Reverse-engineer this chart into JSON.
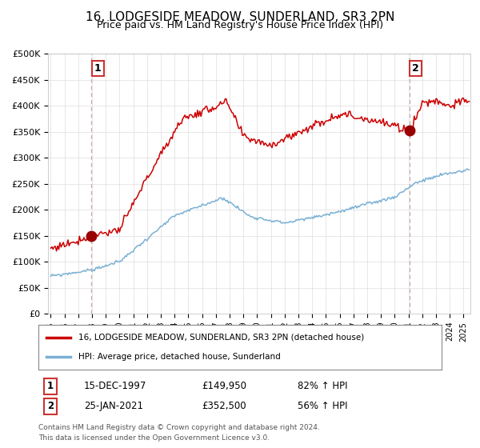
{
  "title": "16, LODGESIDE MEADOW, SUNDERLAND, SR3 2PN",
  "subtitle": "Price paid vs. HM Land Registry's House Price Index (HPI)",
  "ylabel_ticks": [
    "£0",
    "£50K",
    "£100K",
    "£150K",
    "£200K",
    "£250K",
    "£300K",
    "£350K",
    "£400K",
    "£450K",
    "£500K"
  ],
  "ylim": [
    0,
    500000
  ],
  "xlim_start": 1994.8,
  "xlim_end": 2025.5,
  "purchase1_date": 1997.96,
  "purchase1_price": 149950,
  "purchase2_date": 2021.07,
  "purchase2_price": 352500,
  "red_line_color": "#cc0000",
  "blue_line_color": "#7ab0d4",
  "dashed_line_color": "#ccaaaa",
  "marker_color": "#990000",
  "legend_label_red": "16, LODGESIDE MEADOW, SUNDERLAND, SR3 2PN (detached house)",
  "legend_label_blue": "HPI: Average price, detached house, Sunderland",
  "table_row1_num": "1",
  "table_row1_date": "15-DEC-1997",
  "table_row1_price": "£149,950",
  "table_row1_hpi": "82% ↑ HPI",
  "table_row2_num": "2",
  "table_row2_date": "25-JAN-2021",
  "table_row2_price": "£352,500",
  "table_row2_hpi": "56% ↑ HPI",
  "footer_line1": "Contains HM Land Registry data © Crown copyright and database right 2024.",
  "footer_line2": "This data is licensed under the Open Government Licence v3.0.",
  "background_color": "#ffffff",
  "grid_color": "#dddddd",
  "box_edge_color": "#cc3333"
}
